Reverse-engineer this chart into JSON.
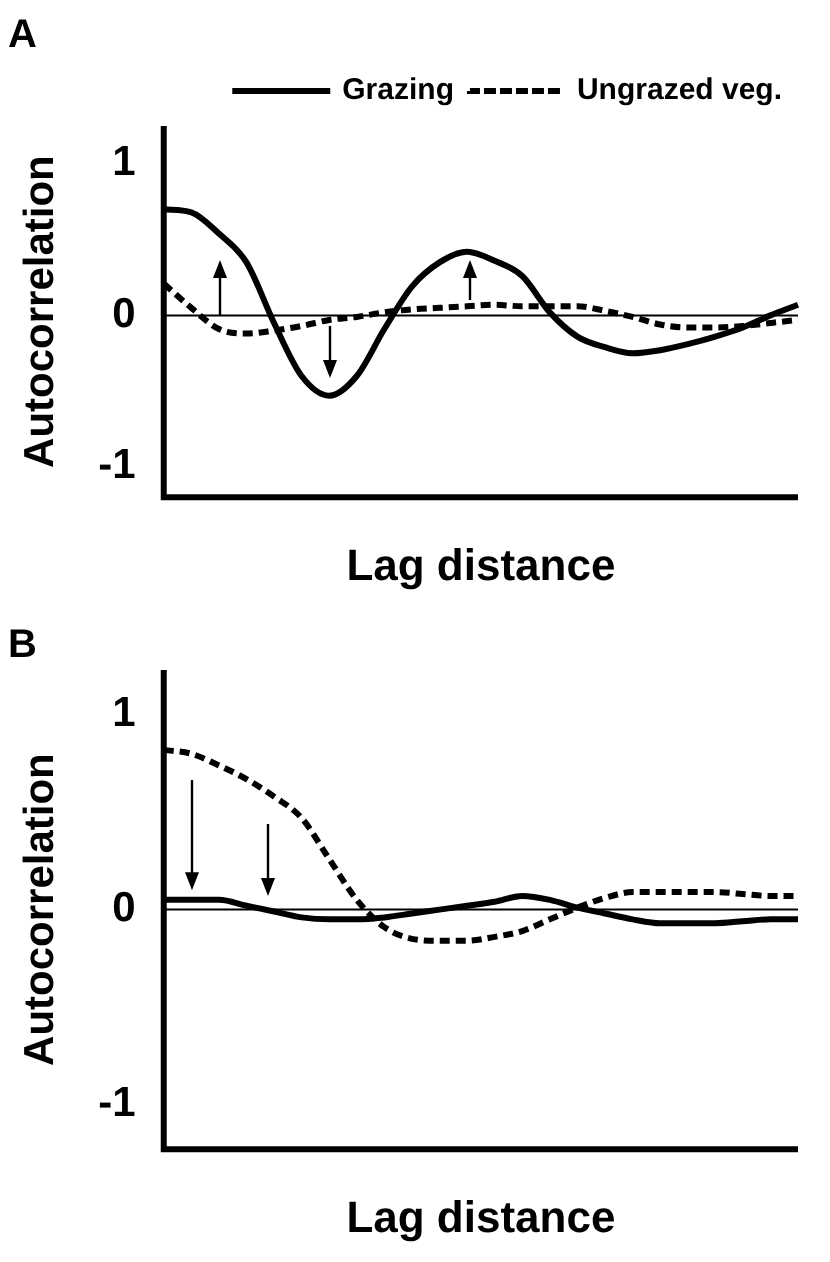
{
  "chart_data": [
    {
      "type": "line",
      "title": "A",
      "xlabel": "Lag distance",
      "ylabel": "Autocorrelation",
      "categories": [
        null,
        null,
        null,
        null,
        null,
        null,
        null,
        null,
        null,
        null,
        null,
        null,
        null,
        null,
        null,
        null,
        null,
        null,
        null,
        null,
        null,
        null,
        null,
        null
      ],
      "series": [
        {
          "name": "Grazing",
          "color": "#000000",
          "line_style": "solid",
          "values": [
            0.7,
            0.68,
            0.54,
            0.35,
            -0.05,
            -0.4,
            -0.53,
            -0.4,
            -0.09,
            0.19,
            0.35,
            0.42,
            0.36,
            0.26,
            0.02,
            -0.14,
            -0.21,
            -0.25,
            -0.23,
            -0.19,
            -0.14,
            -0.08,
            0,
            0.07
          ]
        },
        {
          "name": "Ungrazed veg.",
          "color": "#000000",
          "line_style": "dashed",
          "values": [
            0.21,
            0.05,
            -0.09,
            -0.12,
            -0.1,
            -0.07,
            -0.03,
            -0.01,
            0.02,
            0.04,
            0.05,
            0.06,
            0.07,
            0.06,
            0.06,
            0.06,
            0.03,
            -0.01,
            -0.06,
            -0.08,
            -0.08,
            -0.07,
            -0.05,
            -0.03
          ]
        }
      ],
      "ylim": [
        -1.2,
        1.25
      ],
      "yticks": [
        -1,
        0,
        1
      ],
      "ref_lines": [
        {
          "axis": "y",
          "value": 0,
          "color": "#000000"
        }
      ],
      "legend": "top right",
      "grid": false,
      "tick_labels": "y",
      "marker": "none"
    },
    {
      "type": "line",
      "title": "B",
      "xlabel": "Lag distance",
      "ylabel": "Autocorrelation",
      "categories": [
        null,
        null,
        null,
        null,
        null,
        null,
        null,
        null,
        null,
        null,
        null,
        null,
        null,
        null,
        null,
        null,
        null,
        null,
        null,
        null,
        null,
        null,
        null,
        null
      ],
      "series": [
        {
          "color": "#000000",
          "line_style": "solid",
          "values": [
            0.05,
            0.05,
            0.05,
            0.02,
            -0.01,
            -0.04,
            -0.05,
            -0.05,
            -0.04,
            -0.02,
            0,
            0.02,
            0.04,
            0.07,
            0.05,
            0.01,
            -0.02,
            -0.05,
            -0.07,
            -0.07,
            -0.07,
            -0.06,
            -0.05,
            -0.05
          ]
        },
        {
          "color": "#000000",
          "line_style": "dashed",
          "values": [
            0.82,
            0.8,
            0.74,
            0.67,
            0.58,
            0.47,
            0.26,
            0.05,
            -0.09,
            -0.15,
            -0.16,
            -0.16,
            -0.14,
            -0.11,
            -0.05,
            0.01,
            0.06,
            0.09,
            0.09,
            0.09,
            0.09,
            0.08,
            0.07,
            0.07
          ]
        }
      ],
      "ylim": [
        -1.23,
        1.23
      ],
      "yticks": [
        -1,
        0,
        1
      ],
      "ref_lines": [
        {
          "axis": "y",
          "value": 0,
          "color": "#000000"
        }
      ],
      "legend": false,
      "grid": false,
      "tick_labels": "y",
      "marker": "none"
    }
  ]
}
